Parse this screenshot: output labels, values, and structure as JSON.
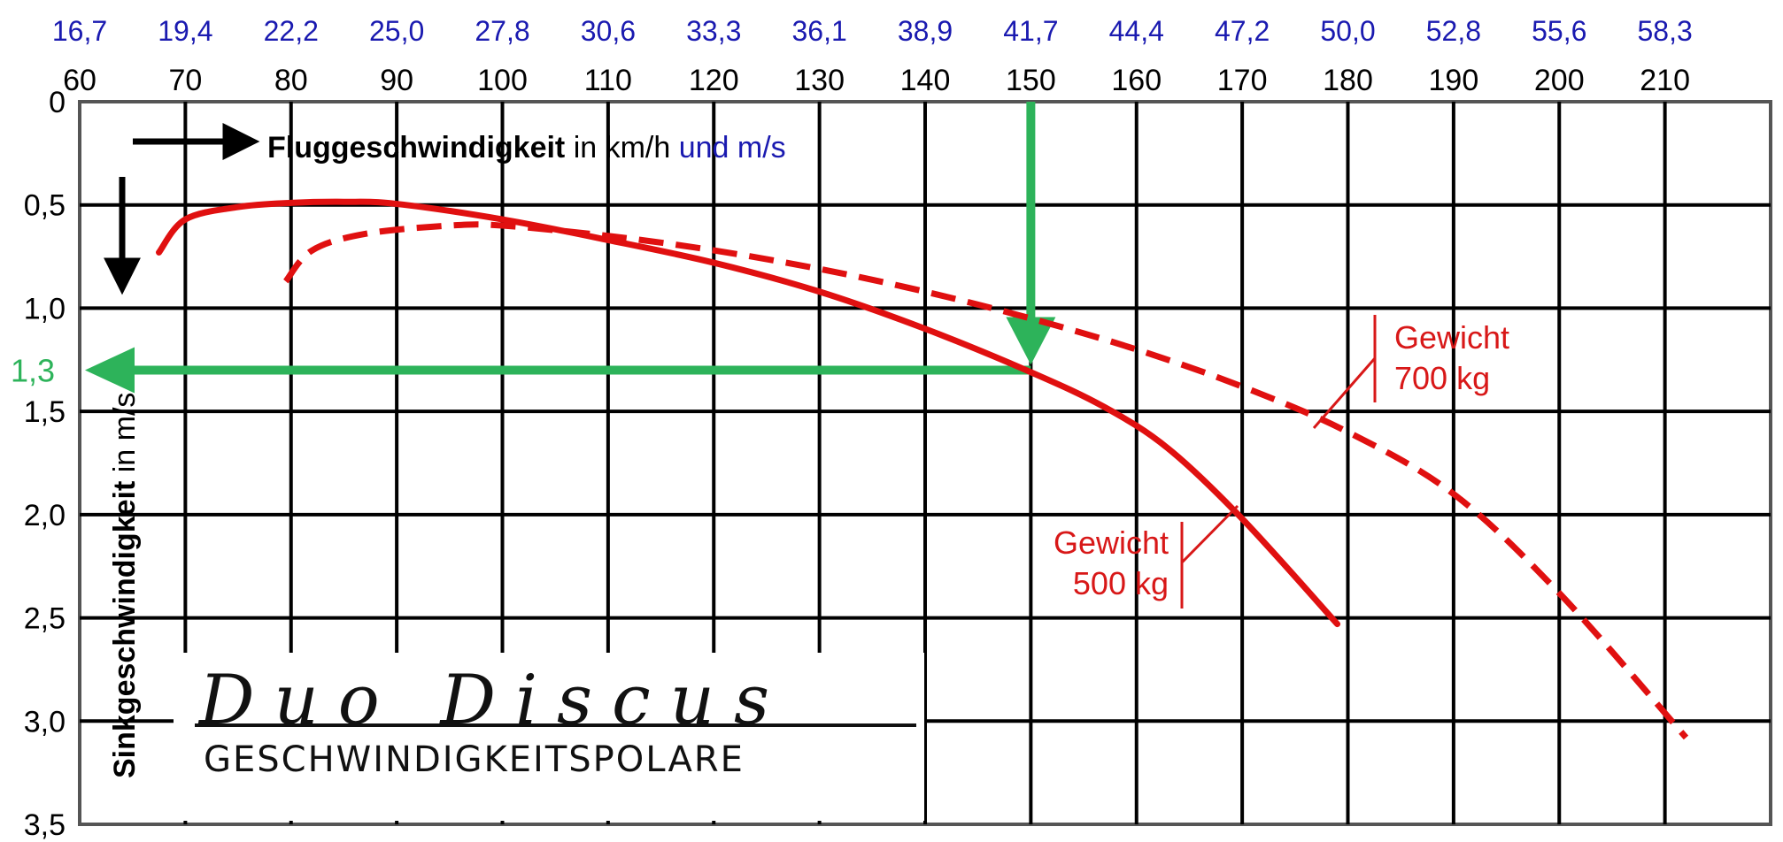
{
  "chart_data": {
    "type": "line",
    "title": "Duo Discus",
    "subtitle": "GESCHWINDIGKEITSPOLARE",
    "xlabel": {
      "bold": "Fluggeschwindigkeit",
      "normal": " in km/h ",
      "blue": "und m/s"
    },
    "ylabel": {
      "bold": "Sinkgeschwindigkeit",
      "normal": " in m/s"
    },
    "xlim": [
      60,
      220
    ],
    "ylim": [
      0,
      3.5
    ],
    "y_inverted": true,
    "grid": true,
    "x_ticks_kmh": [
      "60",
      "70",
      "80",
      "90",
      "100",
      "110",
      "120",
      "130",
      "140",
      "150",
      "160",
      "170",
      "180",
      "190",
      "200",
      "210"
    ],
    "x_ticks_ms": [
      "16,7",
      "19,4",
      "22,2",
      "25,0",
      "27,8",
      "30,6",
      "33,3",
      "36,1",
      "38,9",
      "41,7",
      "44,4",
      "47,2",
      "50,0",
      "52,8",
      "55,6",
      "58,3"
    ],
    "y_ticks": [
      "0",
      "0,5",
      "1,0",
      "1,5",
      "2,0",
      "2,5",
      "3,0",
      "3,5"
    ],
    "series": [
      {
        "name": "Gewicht 500 kg",
        "style": "solid",
        "color": "#e01010",
        "x": [
          67.5,
          70,
          75,
          80,
          85,
          90,
          100,
          110,
          120,
          130,
          140,
          150,
          157,
          163,
          170,
          179
        ],
        "y": [
          0.73,
          0.57,
          0.51,
          0.49,
          0.485,
          0.495,
          0.57,
          0.67,
          0.78,
          0.92,
          1.1,
          1.31,
          1.48,
          1.68,
          2.02,
          2.53
        ]
      },
      {
        "name": "Gewicht 700 kg",
        "style": "dashed",
        "color": "#e01010",
        "x": [
          79.5,
          82,
          87,
          95,
          100,
          110,
          120,
          130,
          140,
          150,
          160,
          170,
          180,
          190,
          200,
          212
        ],
        "y": [
          0.87,
          0.72,
          0.64,
          0.6,
          0.6,
          0.65,
          0.72,
          0.81,
          0.92,
          1.05,
          1.2,
          1.38,
          1.6,
          1.9,
          2.38,
          3.08
        ]
      }
    ],
    "annotations": {
      "w700": [
        "Gewicht",
        "700 kg"
      ],
      "w500": [
        "Gewicht",
        "500 kg"
      ]
    },
    "highlight": {
      "x": 150,
      "y": 1.3,
      "label": "1,3",
      "color": "#2db35a"
    }
  }
}
